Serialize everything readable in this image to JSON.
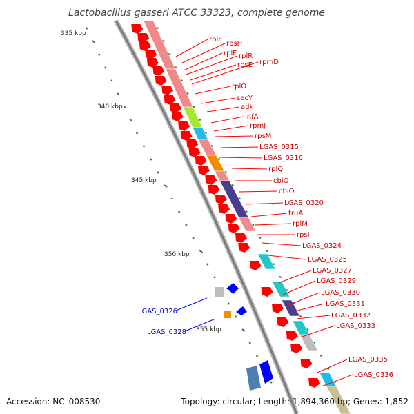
{
  "title": "Lactobacillus gasseri ATCC 33323, complete genome",
  "ruler": [
    "335 kbp",
    "340 kbp",
    "345 kbp",
    "350 kbp",
    "355 kbp"
  ],
  "labels_right": [
    "rplE",
    "rpsH",
    "rplF",
    "rplR",
    "rpsE",
    "rpmD",
    "rplO",
    "secY",
    "adk",
    "infA",
    "rpmJ",
    "rpsM",
    "LGAS_0315",
    "LGAS_0316",
    "rplQ",
    "cbiO",
    "cbiO",
    "LGAS_0320",
    "truA",
    "rplM",
    "rpsI",
    "LGAS_0324",
    "LGAS_0325",
    "LGAS_0327",
    "LGAS_0329",
    "LGAS_0330",
    "LGAS_0331",
    "LGAS_0332",
    "LGAS_0333",
    "LGAS_0335",
    "LGAS_0336"
  ],
  "labels_left": [
    "LGAS_0326",
    "LGAS_0328"
  ],
  "footer": {
    "accession": "Accession: NC_008530",
    "topology": "Topology: circular; Length: 1,894,360 bp; Genes: 1,852"
  },
  "colors": {
    "gene": "#ff0000",
    "gene_reverse": "#0000ff",
    "cog_pink": "#f08a8a",
    "cog_green": "#a6e634",
    "cog_cyan": "#1fbcea",
    "cog_orange": "#f08c00",
    "cog_navy": "#4a3f8c",
    "cog_teal": "#22c8c8",
    "cog_grey": "#bdbdbd",
    "cog_tan": "#c8c090",
    "cog_steel": "#4f7fb0",
    "backbone": "#999999",
    "label_red": "#cc0000",
    "label_blue": "#0000cc",
    "tick": "#2a7a2a"
  }
}
